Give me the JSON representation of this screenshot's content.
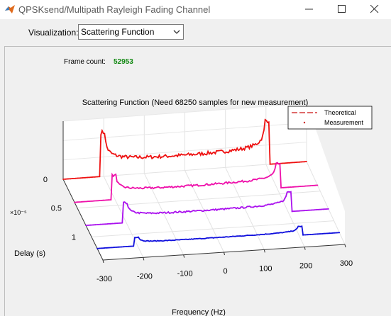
{
  "window": {
    "title": "QPSKsend/Multipath Rayleigh Fading Channel",
    "app_icon": "matlab-icon",
    "controls": [
      "minimize-icon",
      "maximize-icon",
      "close-icon"
    ]
  },
  "toolbar": {
    "visualization_label": "Visualization:",
    "visualization_value": "Scattering Function"
  },
  "frame": {
    "label": "Frame count:",
    "value": "52953",
    "value_color": "#118811"
  },
  "chart_data": {
    "type": "line",
    "title": "Scattering Function (Need 68250 samples for new measurement)",
    "xlabel": "Frequency (Hz)",
    "ylabel": "Delay (s)",
    "y_multiplier": "×10⁻⁵",
    "x_ticks": [
      "-300",
      "-200",
      "-100",
      "0",
      "100",
      "200",
      "300"
    ],
    "y_ticks": [
      "0",
      "0.5",
      "1"
    ],
    "xlim": [
      -300,
      300
    ],
    "legend": {
      "position": "top-right",
      "entries": [
        {
          "name": "Theoretical",
          "style": "dashed",
          "color": "#cc1111"
        },
        {
          "name": "Measurement",
          "style": "dotted",
          "color": "#cc1111"
        }
      ]
    },
    "doppler_limit_hz": 200,
    "series": [
      {
        "delay": 0,
        "relative_power": 1.0,
        "color": "#ee1111"
      },
      {
        "delay": 0.4,
        "relative_power": 0.55,
        "color": "#ee11aa"
      },
      {
        "delay": 0.8,
        "relative_power": 0.45,
        "color": "#aa11ee"
      },
      {
        "delay": 1.2,
        "relative_power": 0.2,
        "color": "#1111dd"
      }
    ],
    "grid": true
  }
}
